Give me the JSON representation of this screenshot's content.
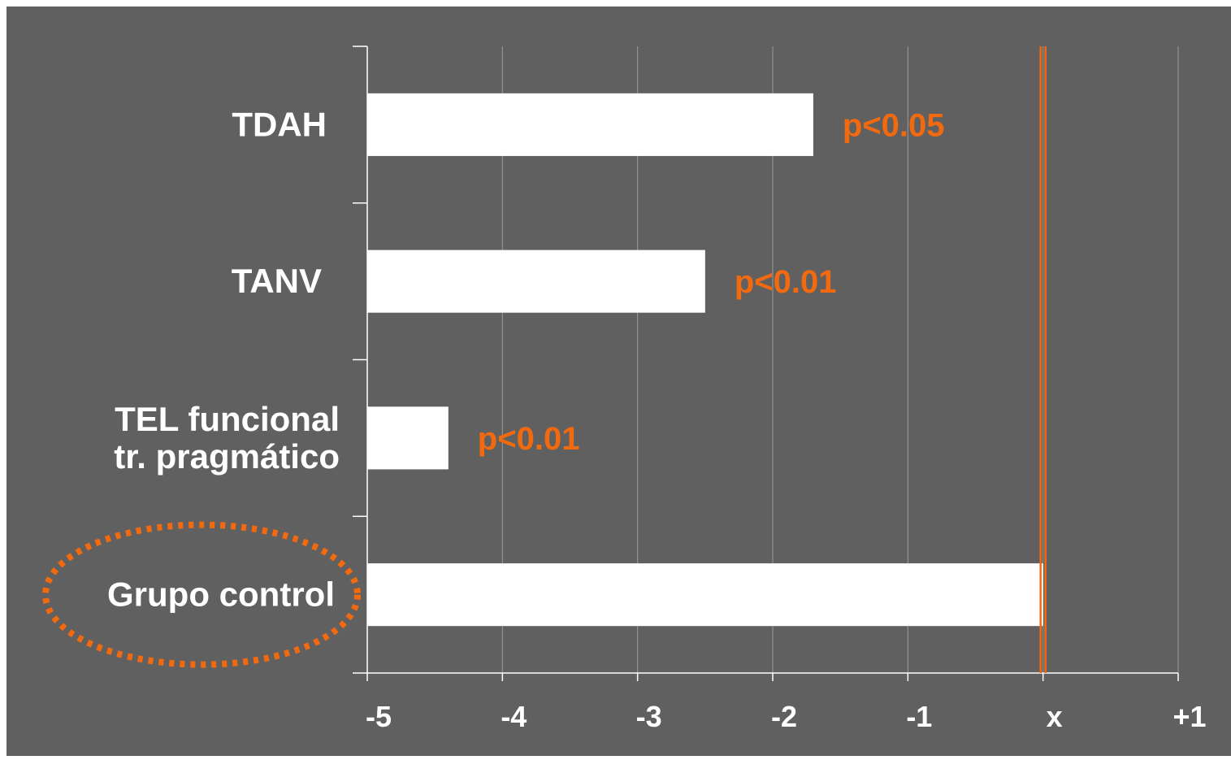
{
  "chart_data": {
    "type": "bar",
    "orientation": "horizontal",
    "categories": [
      "TDAH",
      "TANV",
      "TEL funcional\ntr. pragmático",
      "Grupo control"
    ],
    "values": [
      -1.7,
      -2.5,
      -4.4,
      0
    ],
    "annotations": [
      "p<0.05",
      "p<0.01",
      "p<0.01",
      ""
    ],
    "xticks": [
      "-5",
      "-4",
      "-3",
      "-2",
      "-1",
      "x",
      "+1"
    ],
    "xlim": [
      -5,
      1
    ],
    "reference_line": 0,
    "highlighted_category": "Grupo control",
    "grid": "vertical",
    "colors": {
      "background": "#606060",
      "outer": "#ffffff",
      "bar": "#ffffff",
      "text": "#ffffff",
      "accent": "#f26a10",
      "grid": "#9a9a9a"
    }
  }
}
